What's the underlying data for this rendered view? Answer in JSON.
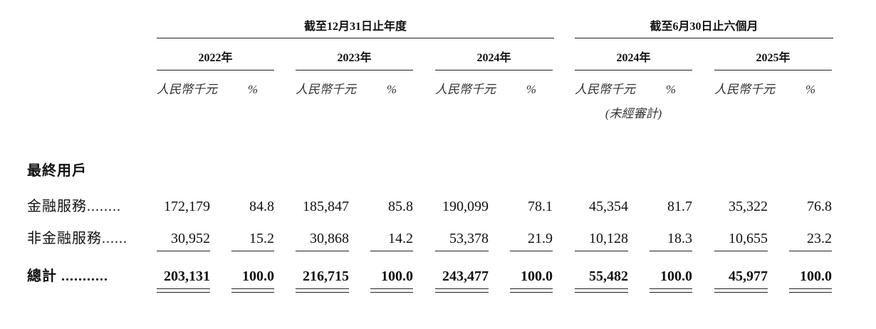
{
  "header": {
    "groups": [
      {
        "label": "截至12月31日止年度"
      },
      {
        "label": "截至6月30日止六個月"
      }
    ],
    "columns": [
      {
        "year": "2022年",
        "unit": "人民幣千元",
        "pct": "%"
      },
      {
        "year": "2023年",
        "unit": "人民幣千元",
        "pct": "%"
      },
      {
        "year": "2024年",
        "unit": "人民幣千元",
        "pct": "%"
      },
      {
        "year": "2024年",
        "unit": "人民幣千元",
        "pct": "%",
        "note": "(未經審計)"
      },
      {
        "year": "2025年",
        "unit": "人民幣千元",
        "pct": "%"
      }
    ]
  },
  "table": {
    "section": "最終用戶",
    "rows": [
      {
        "label": "金融服務........",
        "cells": [
          "172,179",
          "84.8",
          "185,847",
          "85.8",
          "190,099",
          "78.1",
          "45,354",
          "81.7",
          "35,322",
          "76.8"
        ]
      },
      {
        "label": "非金融服務......",
        "cells": [
          "30,952",
          "15.2",
          "30,868",
          "14.2",
          "53,378",
          "21.9",
          "10,128",
          "18.3",
          "10,655",
          "23.2"
        ]
      },
      {
        "label": "總計 ...........",
        "cells": [
          "203,131",
          "100.0",
          "216,715",
          "100.0",
          "243,477",
          "100.0",
          "55,482",
          "100.0",
          "45,977",
          "100.0"
        ]
      }
    ]
  }
}
